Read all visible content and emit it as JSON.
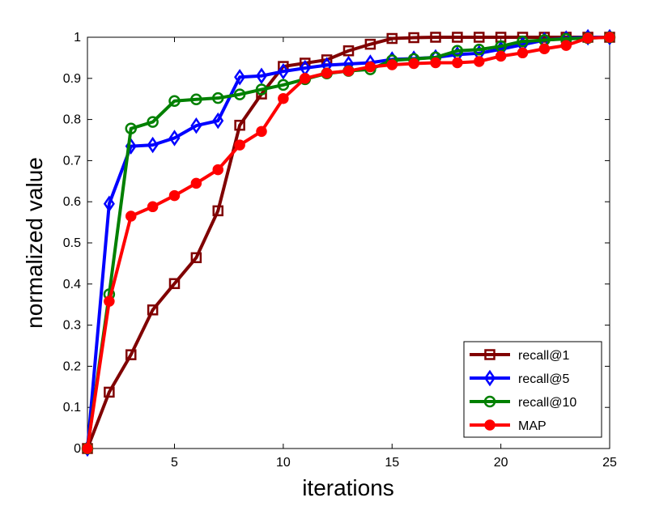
{
  "chart_data": {
    "type": "line",
    "title": "",
    "xlabel": "iterations",
    "ylabel": "normalized value",
    "xlim": [
      1,
      25
    ],
    "ylim": [
      0,
      1
    ],
    "xticks": [
      5,
      10,
      15,
      20,
      25
    ],
    "yticks": [
      0,
      0.1,
      0.2,
      0.3,
      0.4,
      0.5,
      0.6,
      0.7,
      0.8,
      0.9,
      1
    ],
    "xtick_labels": [
      "5",
      "10",
      "15",
      "20",
      "25"
    ],
    "ytick_labels": [
      "0",
      "0.1",
      "0.2",
      "0.3",
      "0.4",
      "0.5",
      "0.6",
      "0.7",
      "0.8",
      "0.9",
      "1"
    ],
    "grid": false,
    "legend_position": "bottom-right",
    "x": [
      1,
      2,
      3,
      4,
      5,
      6,
      7,
      8,
      9,
      10,
      11,
      12,
      13,
      14,
      15,
      16,
      17,
      18,
      19,
      20,
      21,
      22,
      23,
      24,
      25
    ],
    "series": [
      {
        "name": "recall@1",
        "color": "#800000",
        "marker": "square",
        "values": [
          0,
          0.137,
          0.228,
          0.337,
          0.401,
          0.464,
          0.578,
          0.786,
          0.862,
          0.929,
          0.937,
          0.945,
          0.967,
          0.983,
          0.997,
          0.999,
          1,
          1,
          1,
          1,
          1,
          1,
          1,
          1,
          1
        ]
      },
      {
        "name": "recall@5",
        "color": "#0000ff",
        "marker": "diamond",
        "values": [
          0,
          0.595,
          0.735,
          0.738,
          0.755,
          0.785,
          0.797,
          0.903,
          0.906,
          0.917,
          0.925,
          0.932,
          0.935,
          0.938,
          0.946,
          0.948,
          0.951,
          0.958,
          0.961,
          0.971,
          0.982,
          0.993,
          0.997,
          1,
          1
        ]
      },
      {
        "name": "recall@10",
        "color": "#008000",
        "marker": "circle",
        "values": [
          0,
          0.375,
          0.778,
          0.794,
          0.845,
          0.849,
          0.852,
          0.861,
          0.873,
          0.884,
          0.898,
          0.912,
          0.918,
          0.922,
          0.944,
          0.947,
          0.951,
          0.967,
          0.97,
          0.978,
          0.99,
          0.993,
          0.996,
          0.998,
          1
        ]
      },
      {
        "name": "MAP",
        "color": "#ff0000",
        "marker": "filled-circle",
        "values": [
          0,
          0.358,
          0.565,
          0.588,
          0.615,
          0.645,
          0.678,
          0.738,
          0.771,
          0.851,
          0.9,
          0.913,
          0.918,
          0.928,
          0.933,
          0.936,
          0.938,
          0.938,
          0.941,
          0.954,
          0.962,
          0.972,
          0.98,
          0.998,
          1
        ]
      }
    ]
  }
}
